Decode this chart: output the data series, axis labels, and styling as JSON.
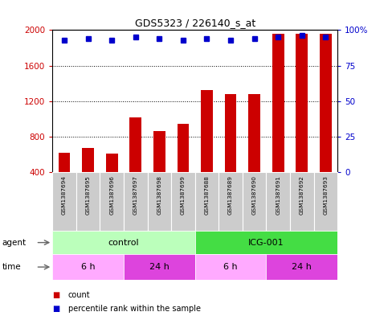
{
  "title": "GDS5323 / 226140_s_at",
  "samples": [
    "GSM1387694",
    "GSM1387695",
    "GSM1387696",
    "GSM1387697",
    "GSM1387698",
    "GSM1387699",
    "GSM1387688",
    "GSM1387689",
    "GSM1387690",
    "GSM1387691",
    "GSM1387692",
    "GSM1387693"
  ],
  "counts": [
    620,
    670,
    610,
    1020,
    860,
    940,
    1320,
    1280,
    1280,
    1960,
    1960,
    1960
  ],
  "percentiles": [
    93,
    94,
    93,
    95,
    94,
    93,
    94,
    93,
    94,
    95,
    96,
    95
  ],
  "ylim_left": [
    400,
    2000
  ],
  "ylim_right": [
    0,
    100
  ],
  "yticks_left": [
    400,
    800,
    1200,
    1600,
    2000
  ],
  "yticks_right": [
    0,
    25,
    50,
    75,
    100
  ],
  "bar_color": "#cc0000",
  "dot_color": "#0000cc",
  "agent_groups": [
    {
      "label": "control",
      "start": 0,
      "end": 6,
      "color": "#bbffbb"
    },
    {
      "label": "ICG-001",
      "start": 6,
      "end": 12,
      "color": "#44dd44"
    }
  ],
  "time_groups": [
    {
      "label": "6 h",
      "start": 0,
      "end": 3,
      "color": "#ffaaff"
    },
    {
      "label": "24 h",
      "start": 3,
      "end": 6,
      "color": "#dd44dd"
    },
    {
      "label": "6 h",
      "start": 6,
      "end": 9,
      "color": "#ffaaff"
    },
    {
      "label": "24 h",
      "start": 9,
      "end": 12,
      "color": "#dd44dd"
    }
  ],
  "legend_items": [
    {
      "label": "count",
      "color": "#cc0000"
    },
    {
      "label": "percentile rank within the sample",
      "color": "#0000cc"
    }
  ],
  "grid_color": "#000000",
  "background_color": "#ffffff",
  "bar_bottom": 400,
  "left_color": "#cc0000",
  "right_color": "#0000cc",
  "sample_box_color": "#cccccc",
  "sample_box_edge": "#888888"
}
